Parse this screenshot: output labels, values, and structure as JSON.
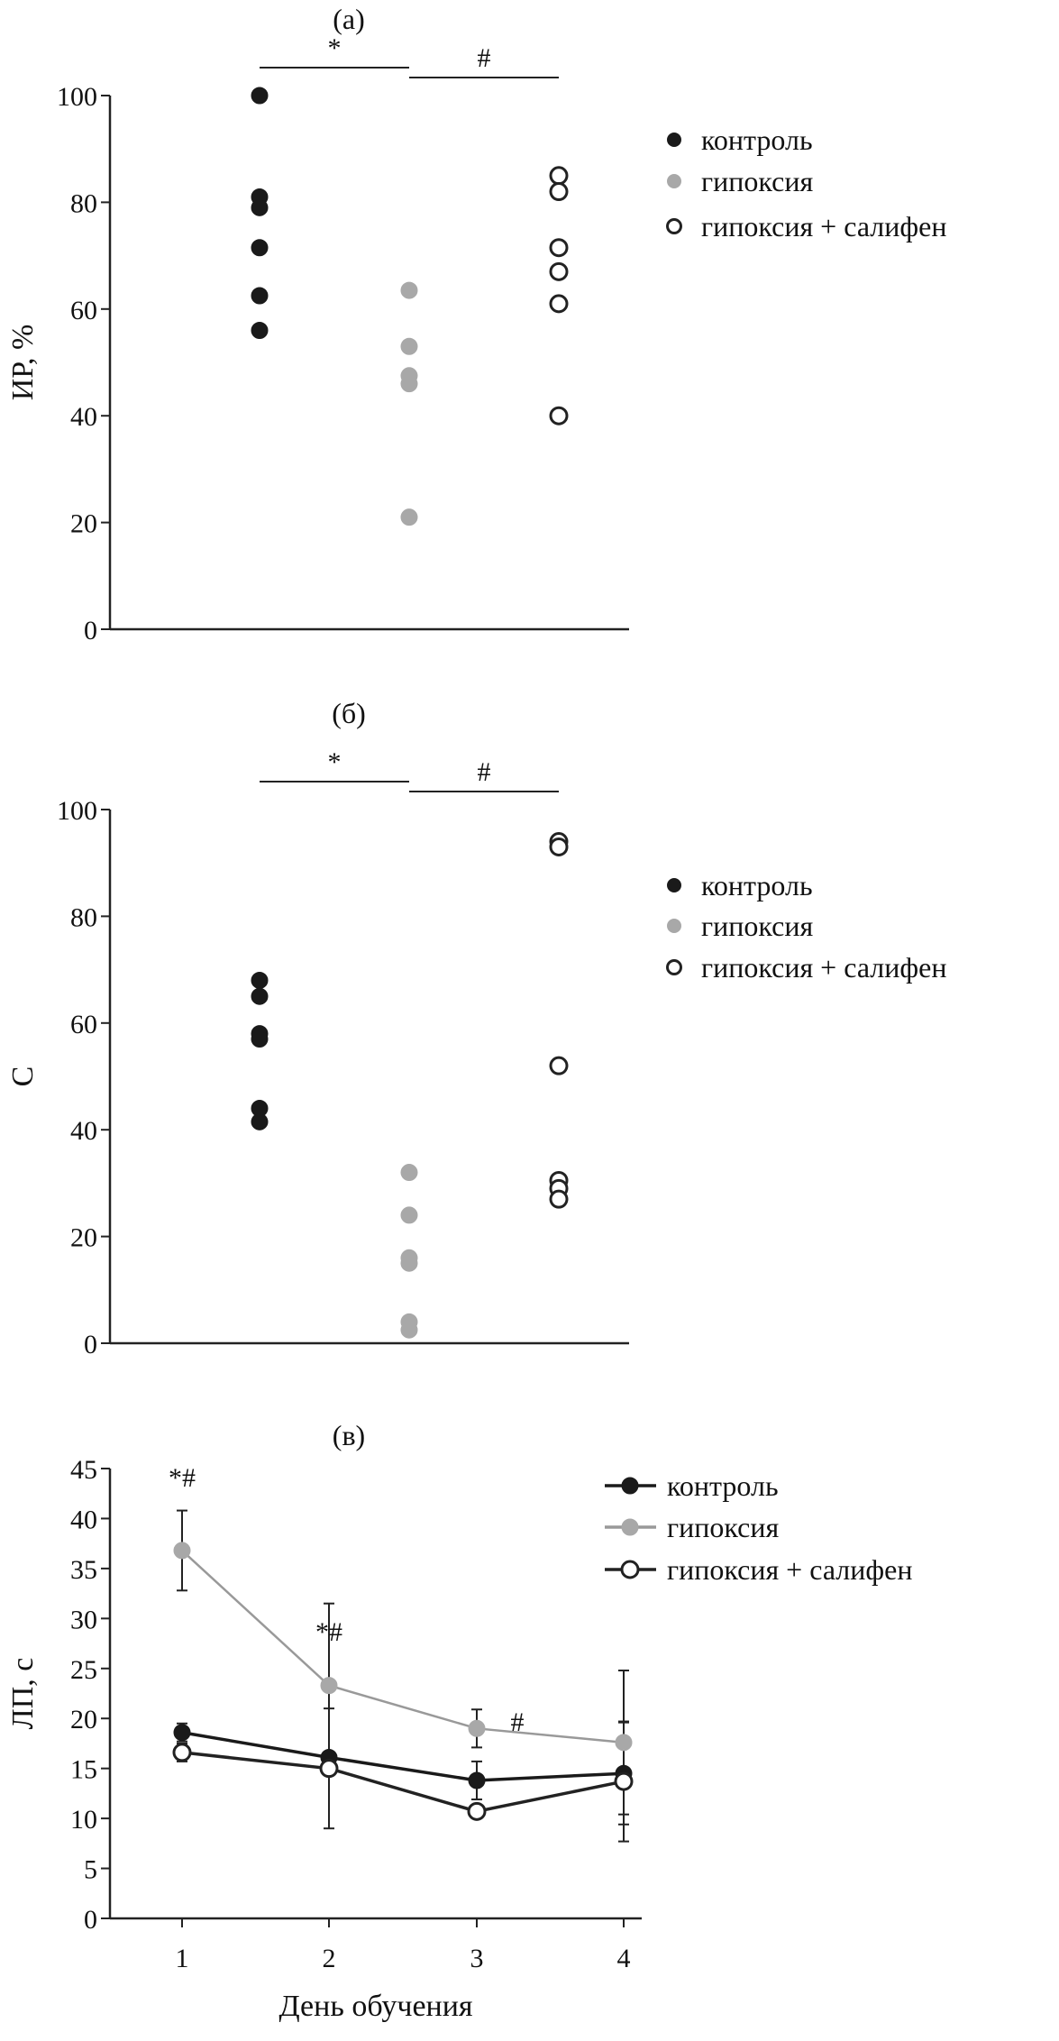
{
  "colors": {
    "control": "#1a1a1a",
    "hypoxia": "#a8a8a8",
    "salifen": "#ffffff",
    "axis": "#222222"
  },
  "chart_data": [
    {
      "type": "scatter",
      "title": "(а)",
      "ylabel": "ИР, %",
      "xlabel": "",
      "ylim": [
        0,
        100
      ],
      "yticks": [
        "0",
        "20",
        "40",
        "60",
        "80",
        "100"
      ],
      "legend_position": "right",
      "significance": [
        {
          "label": "*",
          "from": "контроль",
          "to": "гипоксия"
        },
        {
          "label": "#",
          "from": "гипоксия",
          "to": "гипоксия + салифен"
        }
      ],
      "series": [
        {
          "name": "контроль",
          "values": [
            100,
            81,
            79,
            71.5,
            62.5,
            56
          ]
        },
        {
          "name": "гипоксия",
          "values": [
            63.5,
            53,
            47.5,
            46,
            21
          ]
        },
        {
          "name": "гипоксия + салифен",
          "values": [
            85,
            82,
            71.5,
            67,
            61,
            40
          ]
        }
      ]
    },
    {
      "type": "scatter",
      "title": "(б)",
      "ylabel": "С",
      "xlabel": "",
      "ylim": [
        0,
        100
      ],
      "yticks": [
        "0",
        "20",
        "40",
        "60",
        "80",
        "100"
      ],
      "legend_position": "right",
      "significance": [
        {
          "label": "*",
          "from": "контроль",
          "to": "гипоксия"
        },
        {
          "label": "#",
          "from": "гипоксия",
          "to": "гипоксия + салифен"
        }
      ],
      "series": [
        {
          "name": "контроль",
          "values": [
            68,
            65,
            58,
            57,
            44,
            41.5
          ]
        },
        {
          "name": "гипоксия",
          "values": [
            32,
            24,
            16,
            15,
            4,
            2.5
          ]
        },
        {
          "name": "гипоксия + салифен",
          "values": [
            94,
            93,
            52,
            30.5,
            29,
            27
          ]
        }
      ]
    },
    {
      "type": "line",
      "title": "(в)",
      "ylabel": "ЛП, с",
      "xlabel": "День обучения",
      "x": [
        "1",
        "2",
        "3",
        "4"
      ],
      "ylim": [
        0,
        45
      ],
      "yticks": [
        "0",
        "5",
        "10",
        "15",
        "20",
        "25",
        "30",
        "35",
        "40",
        "45"
      ],
      "legend_position": "top-right",
      "annotations": [
        {
          "x": 1,
          "text": "*#"
        },
        {
          "x": 2,
          "text": "*#"
        },
        {
          "x": 3,
          "text": "#"
        }
      ],
      "series": [
        {
          "name": "контроль",
          "values": [
            18.6,
            16.1,
            13.8,
            14.5
          ],
          "errors": [
            0.9,
            0,
            1.9,
            5.1
          ]
        },
        {
          "name": "гипоксия",
          "values": [
            36.8,
            23.3,
            19.0,
            17.6
          ],
          "errors": [
            4.0,
            8.2,
            1.9,
            7.2
          ]
        },
        {
          "name": "гипоксия + салифен",
          "values": [
            16.6,
            15.0,
            10.7,
            13.7
          ],
          "errors": [
            0.9,
            6.0,
            0,
            6.0
          ]
        }
      ]
    }
  ]
}
